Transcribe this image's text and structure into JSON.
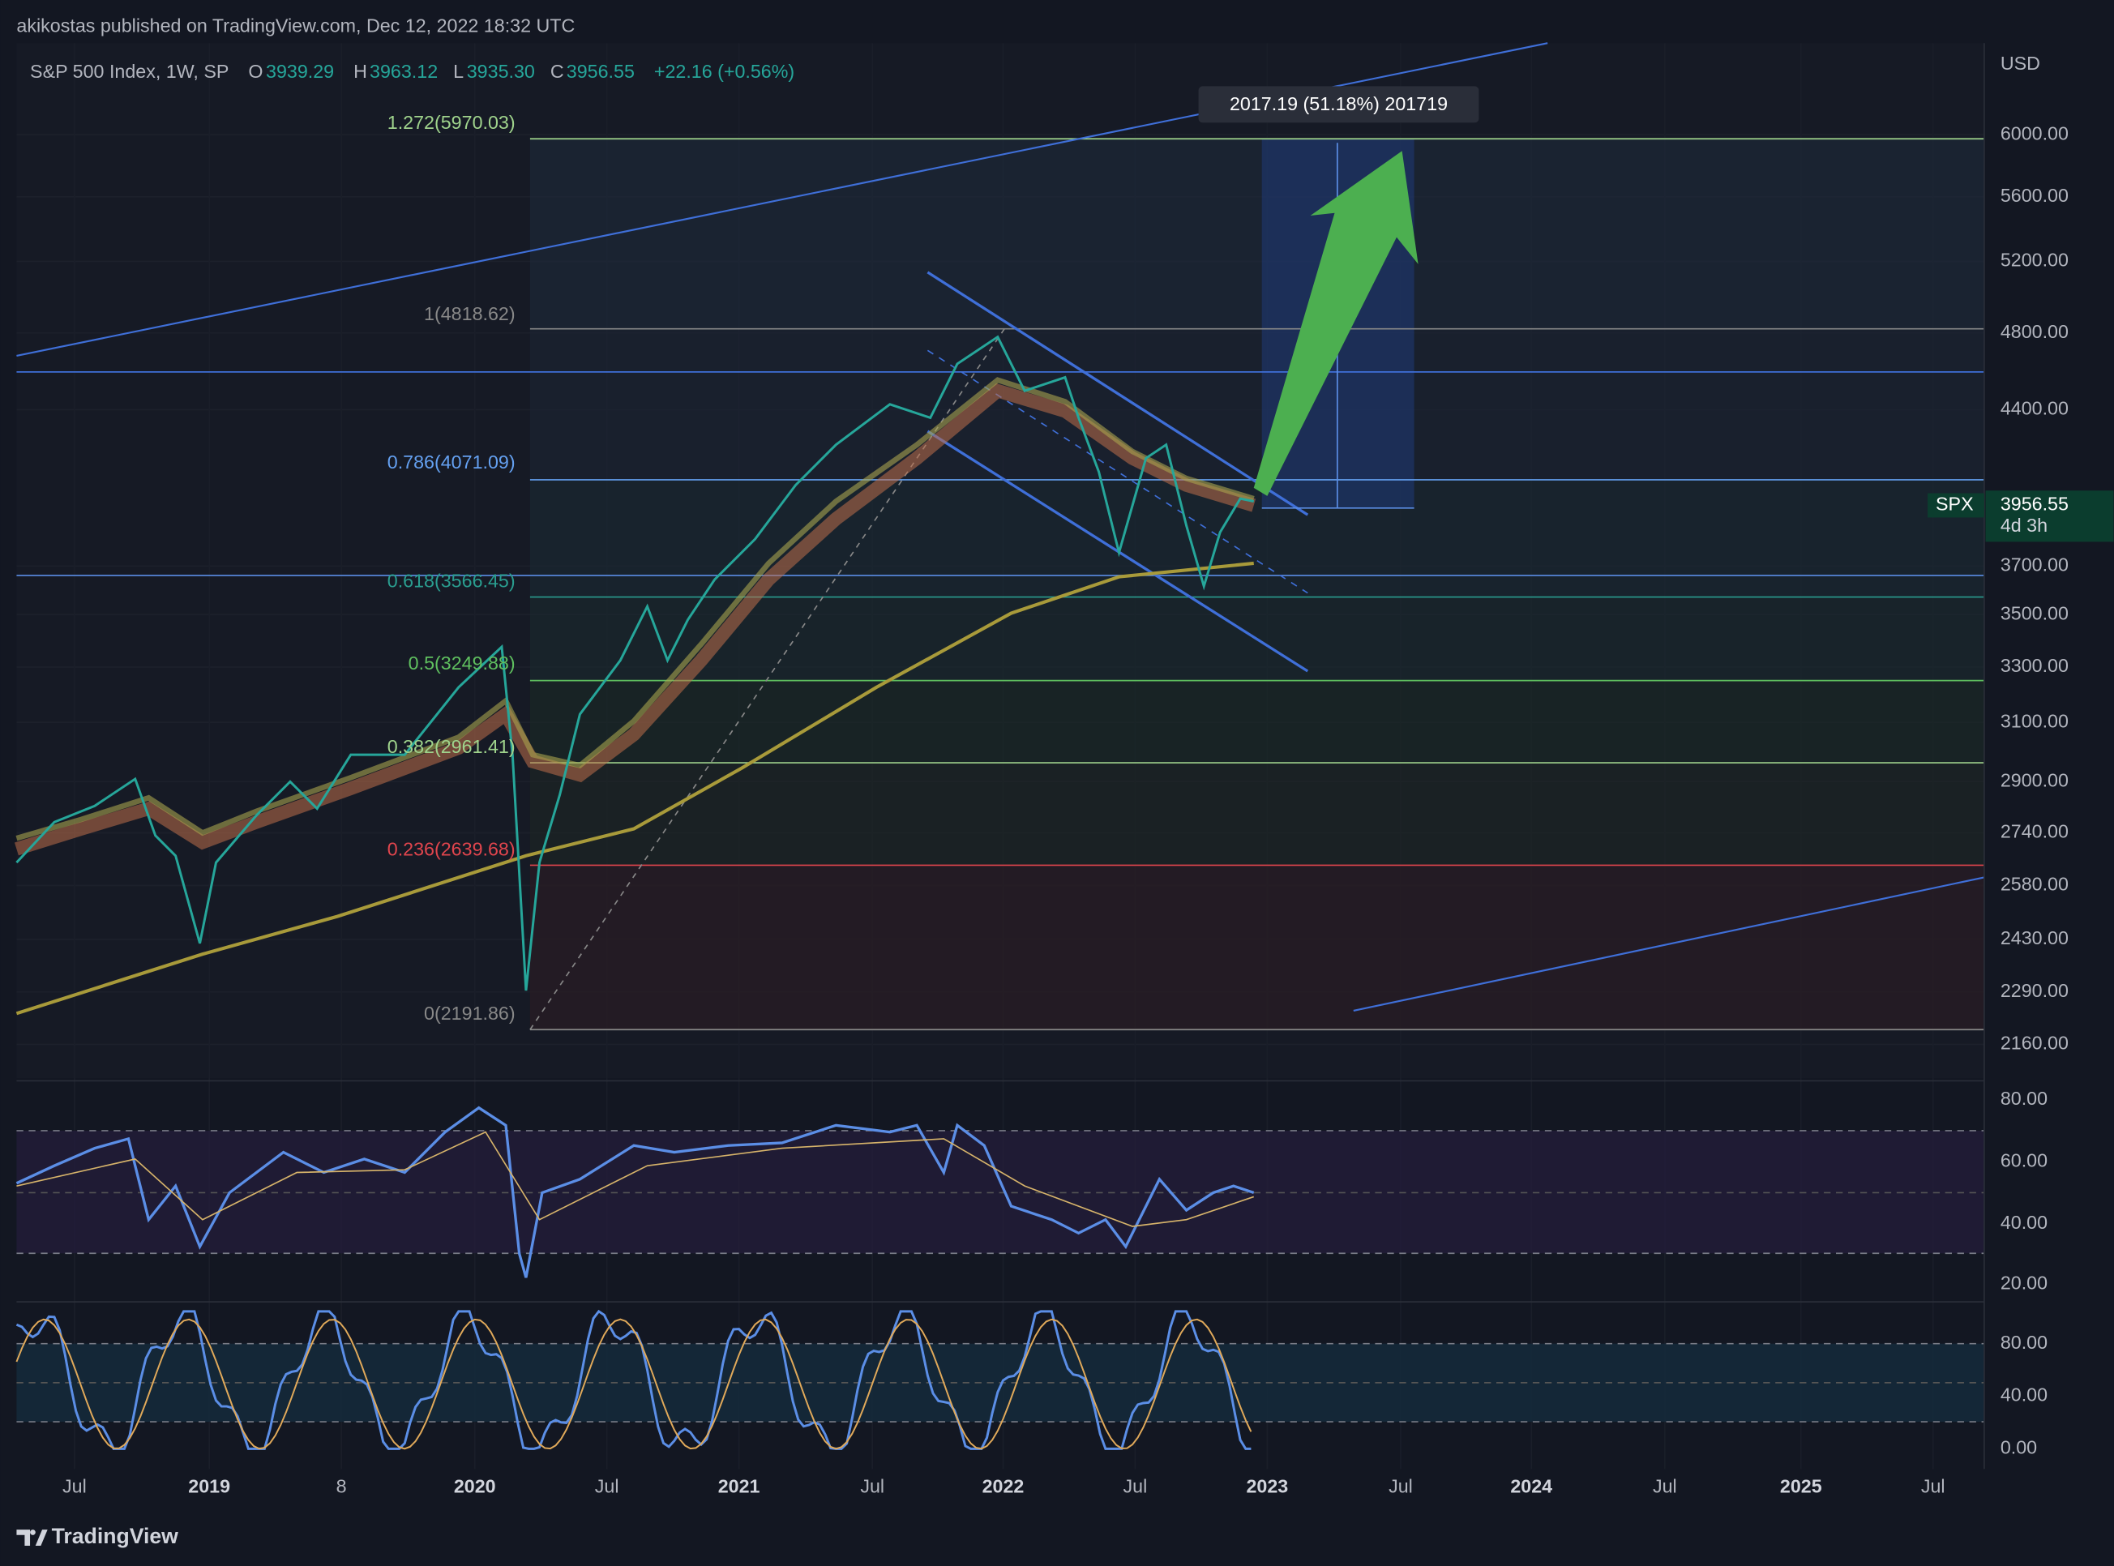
{
  "header": {
    "publisher": "akikostas published on TradingView.com, Dec 12, 2022 18:32 UTC"
  },
  "legend": {
    "symbol": "S&P 500 Index, 1W, SP",
    "open_label": "O",
    "open": "3939.29",
    "high_label": "H",
    "high": "3963.12",
    "low_label": "L",
    "low": "3935.30",
    "close_label": "C",
    "close": "3956.55",
    "change": "+22.16 (+0.56%)"
  },
  "currency": "USD",
  "price_axis": [
    "6000.00",
    "5600.00",
    "5200.00",
    "4800.00",
    "4400.00",
    "3700.00",
    "3500.00",
    "3300.00",
    "3100.00",
    "2900.00",
    "2740.00",
    "2580.00",
    "2430.00",
    "2290.00",
    "2160.00"
  ],
  "last_price": {
    "symbol": "SPX",
    "price": "3956.55",
    "countdown": "4d 3h"
  },
  "fib_levels": [
    "1.272(5970.03)",
    "1(4818.62)",
    "0.786(4071.09)",
    "0.618(3566.45)",
    "0.5(3249.88)",
    "0.382(2961.41)",
    "0.236(2639.68)",
    "0(2191.86)"
  ],
  "measure": "2017.19 (51.18%) 201719",
  "rsi_axis": [
    "80.00",
    "60.00",
    "40.00",
    "20.00"
  ],
  "stoch_axis": [
    "80.00",
    "40.00",
    "0.00"
  ],
  "time_axis": [
    "Jul",
    "2019",
    "8",
    "2020",
    "Jul",
    "2021",
    "Jul",
    "2022",
    "Jul",
    "2023",
    "Jul",
    "2024",
    "Jul",
    "2025",
    "Jul"
  ],
  "footer": "TradingView"
}
